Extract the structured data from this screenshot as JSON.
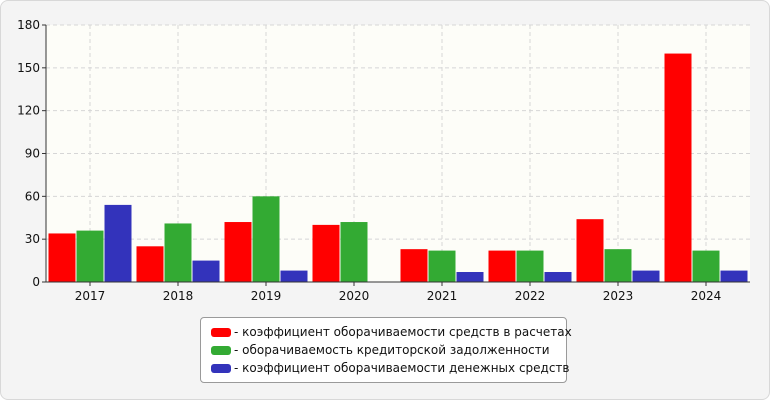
{
  "chart_data": {
    "type": "bar",
    "categories": [
      "2017",
      "2018",
      "2019",
      "2020",
      "2021",
      "2022",
      "2023",
      "2024"
    ],
    "series": [
      {
        "name": "- коэффициент оборачиваемости средств в расчетах",
        "color": "#ff0000",
        "values": [
          34,
          25,
          42,
          40,
          23,
          22,
          44,
          160
        ]
      },
      {
        "name": "- оборачиваемость кредиторской задолженности",
        "color": "#33aa33",
        "values": [
          36,
          41,
          60,
          42,
          22,
          22,
          23,
          22
        ]
      },
      {
        "name": "- коэффициент оборачиваемости денежных средств",
        "color": "#3333bb",
        "values": [
          54,
          15,
          8,
          0,
          7,
          7,
          8,
          8
        ]
      }
    ],
    "yticks": [
      "0",
      "30",
      "60",
      "90",
      "120",
      "150",
      "180"
    ],
    "ylim": [
      0,
      180
    ],
    "title": "",
    "xlabel": "",
    "ylabel": "",
    "grid": true,
    "legend_position": "bottom-center"
  }
}
